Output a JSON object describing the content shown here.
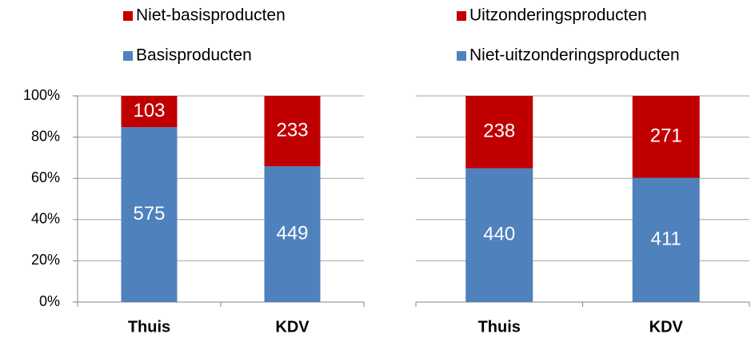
{
  "chart_data": [
    {
      "type": "bar",
      "stacking": "percent",
      "categories": [
        "Thuis",
        "KDV"
      ],
      "series": [
        {
          "name": "Basisproducten",
          "color": "#4f81bd",
          "values": [
            575,
            449
          ]
        },
        {
          "name": "Niet-basisproducten",
          "color": "#c00000",
          "values": [
            103,
            233
          ]
        }
      ],
      "ylim": [
        0,
        100
      ],
      "yticks": [
        {
          "value": 0,
          "label": "0%"
        },
        {
          "value": 20,
          "label": "20%"
        },
        {
          "value": 40,
          "label": "40%"
        },
        {
          "value": 60,
          "label": "60%"
        },
        {
          "value": 80,
          "label": "80%"
        },
        {
          "value": 100,
          "label": "100%"
        }
      ],
      "ytick_labels": true,
      "grid": true
    },
    {
      "type": "bar",
      "stacking": "percent",
      "categories": [
        "Thuis",
        "KDV"
      ],
      "series": [
        {
          "name": "Niet-uitzonderingsproducten",
          "color": "#4f81bd",
          "values": [
            440,
            411
          ]
        },
        {
          "name": "Uitzonderingsproducten",
          "color": "#c00000",
          "values": [
            238,
            271
          ]
        }
      ],
      "ylim": [
        0,
        100
      ],
      "yticks": [
        0,
        20,
        40,
        60,
        80,
        100
      ],
      "ytick_labels": false,
      "grid": true
    }
  ]
}
